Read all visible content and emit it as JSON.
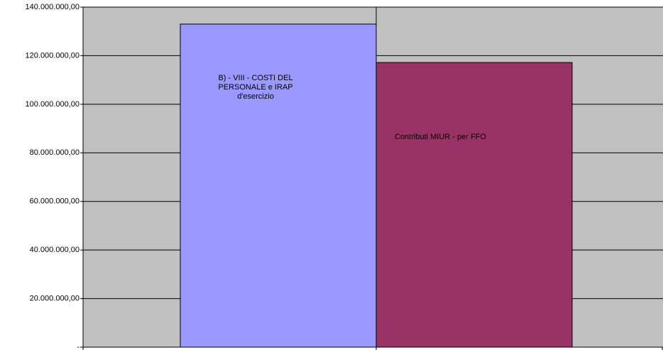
{
  "chart_data": {
    "type": "bar",
    "categories": [
      "B) - VIII - COSTI DEL PERSONALE e IRAP d'esercizio",
      "Contributi MIUR - per FFO"
    ],
    "values": [
      133000000,
      117200000
    ],
    "colors": [
      "#9999ff",
      "#993366"
    ],
    "ylim": [
      0,
      140000000
    ],
    "yticks": [
      {
        "value": 0,
        "label": "-"
      },
      {
        "value": 20000000,
        "label": "20.000.000,00"
      },
      {
        "value": 40000000,
        "label": "40.000.000,00"
      },
      {
        "value": 60000000,
        "label": "60.000.000,00"
      },
      {
        "value": 80000000,
        "label": "80.000.000,00"
      },
      {
        "value": 100000000,
        "label": "100.000.000,00"
      },
      {
        "value": 120000000,
        "label": "120.000.000,00"
      },
      {
        "value": 140000000,
        "label": "140.000.000,00"
      }
    ],
    "grid": true
  }
}
